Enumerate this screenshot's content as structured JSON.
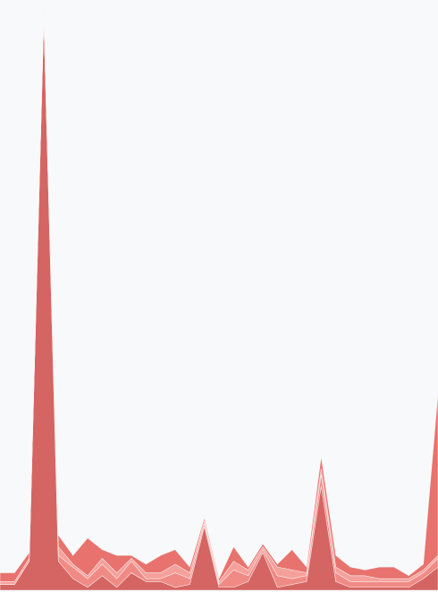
{
  "chart_data": {
    "type": "area",
    "stacked": true,
    "title": "",
    "xlabel": "",
    "ylabel": "",
    "grid": false,
    "legend": "none",
    "axes_visible": false,
    "ylim": [
      0,
      100
    ],
    "x": [
      0,
      1,
      2,
      3,
      4,
      5,
      6,
      7,
      8,
      9,
      10,
      11,
      12,
      13,
      14,
      15,
      16,
      17,
      18,
      19,
      20,
      21,
      22,
      23,
      24,
      25,
      26,
      27,
      28,
      29,
      30
    ],
    "series": [
      {
        "color": "#d46562",
        "values": [
          1.0,
          1.0,
          5.0,
          99.0,
          5.0,
          2.0,
          0.5,
          2.5,
          0.5,
          3.0,
          1.5,
          1.5,
          0.5,
          1.0,
          11.0,
          0.5,
          0.5,
          1.5,
          6.5,
          0.5,
          1.0,
          1.5,
          18.0,
          1.5,
          0.5,
          0.5,
          0.5,
          0.5,
          0.5,
          2.0,
          4.0
        ]
      },
      {
        "color": "#f08a85",
        "values": [
          0.0,
          0.0,
          0.0,
          0.0,
          1.0,
          2.0,
          1.5,
          2.0,
          1.5,
          2.0,
          0.5,
          0.5,
          2.5,
          1.0,
          0.5,
          0.5,
          3.0,
          1.0,
          0.5,
          2.0,
          1.0,
          1.0,
          2.0,
          1.5,
          1.0,
          1.0,
          1.0,
          1.0,
          1.0,
          1.0,
          1.5
        ]
      },
      {
        "color": "#f5a09b",
        "values": [
          0.5,
          0.5,
          0.5,
          0.5,
          1.5,
          0.5,
          0.5,
          1.0,
          1.0,
          0.5,
          1.0,
          1.0,
          1.5,
          1.0,
          0.5,
          0.5,
          1.5,
          1.0,
          0.5,
          1.5,
          1.5,
          0.5,
          1.0,
          1.0,
          1.0,
          1.0,
          0.5,
          0.5,
          0.5,
          0.5,
          0.5
        ]
      },
      {
        "color": "#e8726d",
        "values": [
          1.5,
          1.5,
          1.0,
          0.5,
          2.0,
          1.5,
          6.5,
          1.5,
          3.0,
          0.5,
          1.5,
          3.0,
          2.5,
          1.0,
          0.5,
          0.5,
          2.5,
          0.5,
          0.5,
          0.5,
          3.5,
          1.0,
          2.0,
          2.0,
          1.5,
          1.0,
          2.0,
          2.0,
          0.5,
          1.0,
          28.0
        ]
      }
    ]
  }
}
